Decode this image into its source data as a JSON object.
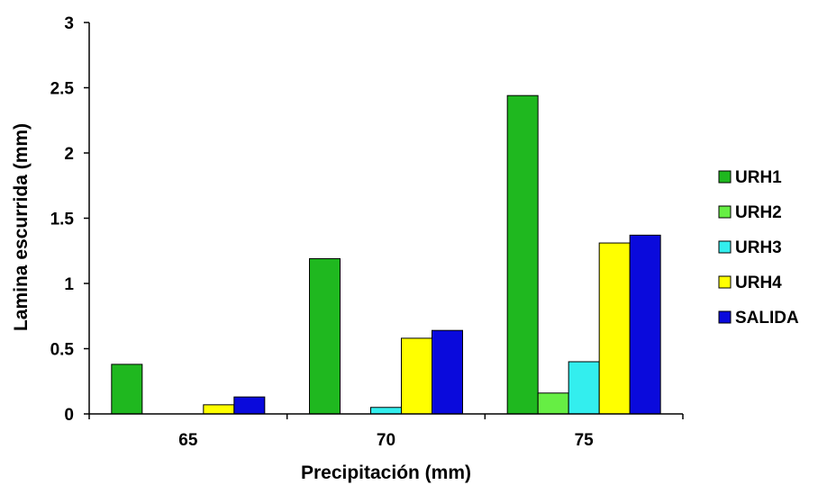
{
  "chart_data": {
    "type": "bar",
    "title": "",
    "xlabel": "Precipitación (mm)",
    "ylabel": "Lamina escurrida (mm)",
    "categories": [
      "65",
      "70",
      "75"
    ],
    "ylim": [
      0,
      3
    ],
    "yticks": [
      "0",
      "0.5",
      "1",
      "1.5",
      "2",
      "2.5",
      "3"
    ],
    "grid": false,
    "legend_position": "right",
    "series": [
      {
        "name": "URH1",
        "color": "#1fb81f",
        "values": [
          0.38,
          1.19,
          2.44
        ]
      },
      {
        "name": "URH2",
        "color": "#66ee44",
        "values": [
          0.0,
          0.0,
          0.16
        ]
      },
      {
        "name": "URH3",
        "color": "#33eeee",
        "values": [
          0.0,
          0.05,
          0.4
        ]
      },
      {
        "name": "URH4",
        "color": "#ffff00",
        "values": [
          0.07,
          0.58,
          1.31
        ]
      },
      {
        "name": "SALIDA",
        "color": "#0a0adc",
        "values": [
          0.13,
          0.64,
          1.37
        ]
      }
    ]
  }
}
